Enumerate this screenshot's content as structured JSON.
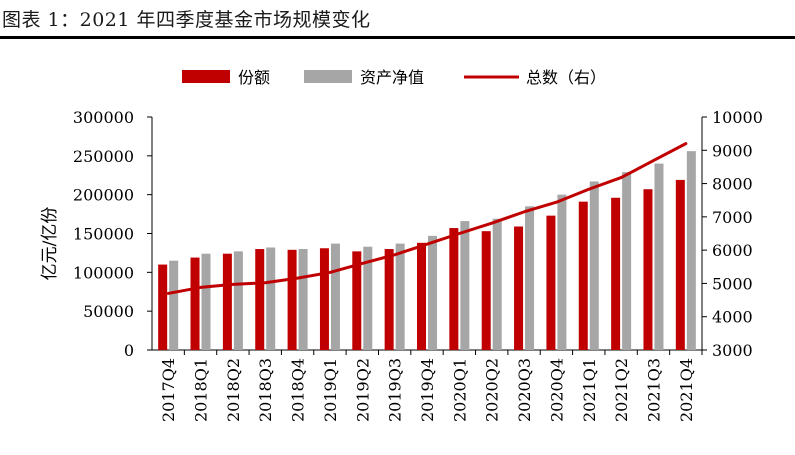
{
  "title": "图表 1：2021 年四季度基金市场规模变化",
  "chart_data": {
    "type": "bar",
    "categories": [
      "2017Q4",
      "2018Q1",
      "2018Q2",
      "2018Q3",
      "2018Q4",
      "2019Q1",
      "2019Q2",
      "2019Q3",
      "2019Q4",
      "2020Q1",
      "2020Q2",
      "2020Q3",
      "2020Q4",
      "2021Q1",
      "2021Q2",
      "2021Q3",
      "2021Q4"
    ],
    "series": [
      {
        "name": "份额",
        "kind": "bar",
        "axis": "left",
        "color": "#c00000",
        "values": [
          110000,
          119000,
          124000,
          130000,
          129000,
          131000,
          127000,
          130000,
          138000,
          157000,
          153000,
          159000,
          173000,
          191000,
          196000,
          207000,
          219000
        ]
      },
      {
        "name": "资产净值",
        "kind": "bar",
        "axis": "left",
        "color": "#a6a6a6",
        "values": [
          115000,
          124000,
          127000,
          132000,
          130000,
          137000,
          133000,
          137000,
          147000,
          166000,
          169000,
          185000,
          200000,
          217000,
          229000,
          240000,
          256000
        ]
      },
      {
        "name": "总数（右）",
        "kind": "line",
        "axis": "right",
        "color": "#c00000",
        "values": [
          4700,
          4880,
          4970,
          5020,
          5160,
          5330,
          5600,
          5860,
          6180,
          6500,
          6810,
          7150,
          7440,
          7830,
          8180,
          8690,
          9200
        ]
      }
    ],
    "ylabel": "亿元/亿份",
    "ylim": [
      0,
      300000
    ],
    "yticks": [
      "300000",
      "250000",
      "200000",
      "150000",
      "100000",
      "50000",
      "0"
    ],
    "y2lim": [
      3000,
      10000
    ],
    "y2ticks": [
      "10000",
      "9000",
      "8000",
      "7000",
      "6000",
      "5000",
      "4000",
      "3000"
    ],
    "grid": false,
    "legend": "top"
  }
}
